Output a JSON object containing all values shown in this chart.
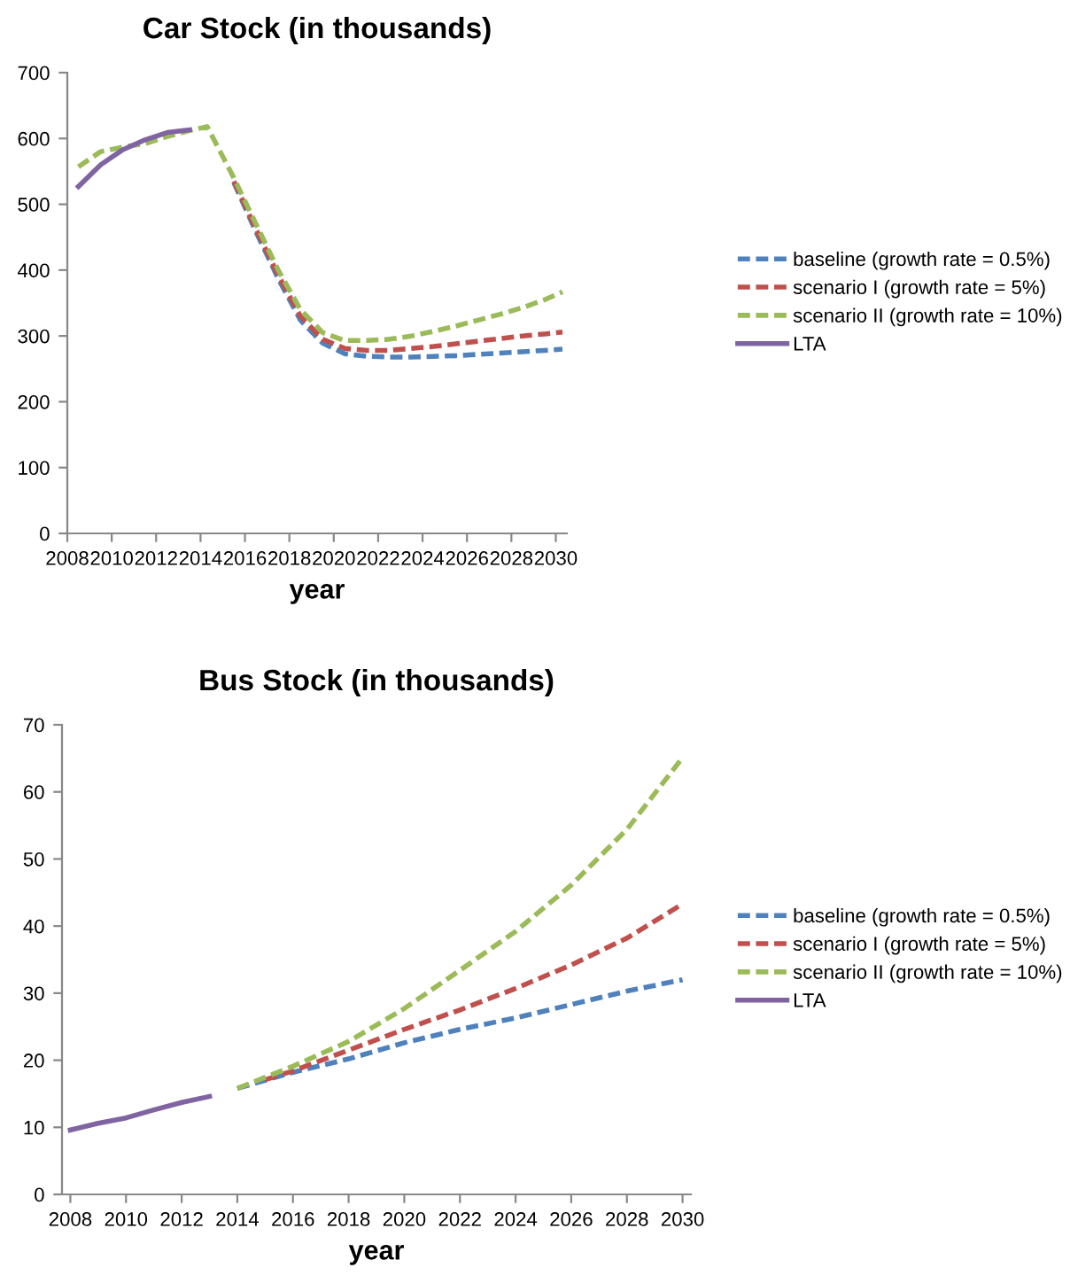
{
  "chart_data": [
    {
      "type": "line",
      "title": "Car Stock (in thousands)",
      "xlabel": "year",
      "xlim": [
        2008,
        2030.5
      ],
      "xticks": [
        2008,
        2010,
        2012,
        2014,
        2016,
        2018,
        2020,
        2022,
        2024,
        2026,
        2028,
        2030
      ],
      "ylim": [
        0,
        700
      ],
      "yticks": [
        0,
        100,
        200,
        300,
        400,
        500,
        600,
        700
      ],
      "grid": false,
      "legend": "right",
      "marker": "none",
      "series": [
        {
          "name": "baseline (growth rate = 0.5%)",
          "color": "#4f81bd",
          "line_style": "dashed",
          "x": [
            2015.5,
            2016.5,
            2017.5,
            2018.5,
            2019.5,
            2020.5,
            2021.5,
            2022.5,
            2023.5,
            2024.5,
            2025.5,
            2026.5,
            2027.5,
            2028.5,
            2029.5,
            2030.3
          ],
          "values": [
            533,
            458,
            387,
            324,
            289,
            273,
            269,
            268,
            268,
            269,
            270,
            272,
            274,
            276,
            278,
            280
          ]
        },
        {
          "name": "scenario I (growth rate = 5%)",
          "color": "#c0504d",
          "line_style": "dashed",
          "x": [
            2015.5,
            2016.5,
            2017.5,
            2018.5,
            2019.5,
            2020.5,
            2021.5,
            2022.5,
            2023.5,
            2024.5,
            2025.5,
            2026.5,
            2027.5,
            2028.5,
            2029.5,
            2030.3
          ],
          "values": [
            535,
            462,
            392,
            330,
            295,
            281,
            278,
            278,
            281,
            284,
            288,
            292,
            296,
            300,
            303,
            306
          ]
        },
        {
          "name": "scenario II (growth rate = 10%)",
          "color": "#9bbb59",
          "line_style": "dashed",
          "x": [
            2008.5,
            2009.5,
            2010.5,
            2011.5,
            2012.5,
            2013.5,
            2014.3,
            2015.5,
            2016.5,
            2017.5,
            2018.5,
            2019.5,
            2020.5,
            2021.5,
            2022.5,
            2023.5,
            2024.5,
            2025.5,
            2026.5,
            2027.5,
            2028.5,
            2029.5,
            2030.3
          ],
          "values": [
            557,
            580,
            587,
            592,
            603,
            612,
            618,
            540,
            470,
            400,
            340,
            305,
            293,
            293,
            295,
            300,
            307,
            315,
            324,
            333,
            343,
            355,
            367
          ]
        },
        {
          "name": "LTA",
          "color": "#8064a2",
          "line_style": "solid",
          "x": [
            2008.5,
            2009.5,
            2010.5,
            2011.5,
            2012.5,
            2013.5
          ],
          "values": [
            527,
            560,
            583,
            598,
            609,
            613
          ]
        }
      ]
    },
    {
      "type": "line",
      "title": "Bus Stock (in thousands)",
      "xlabel": "year",
      "xlim": [
        2007.7,
        2030.3
      ],
      "xticks": [
        2008,
        2010,
        2012,
        2014,
        2016,
        2018,
        2020,
        2022,
        2024,
        2026,
        2028,
        2030
      ],
      "ylim": [
        0,
        70
      ],
      "yticks": [
        0,
        10,
        20,
        30,
        40,
        50,
        60,
        70
      ],
      "grid": false,
      "legend": "right",
      "marker": "none",
      "series": [
        {
          "name": "baseline (growth rate = 0.5%)",
          "color": "#4f81bd",
          "line_style": "dashed",
          "x": [
            2014,
            2016,
            2018,
            2020,
            2022,
            2024,
            2026,
            2028,
            2030
          ],
          "values": [
            15.8,
            18.2,
            20.2,
            22.6,
            24.6,
            26.3,
            28.3,
            30.3,
            32
          ]
        },
        {
          "name": "scenario I (growth rate = 5%)",
          "color": "#c0504d",
          "line_style": "dashed",
          "x": [
            2015,
            2016,
            2018,
            2020,
            2022,
            2024,
            2026,
            2028,
            2030
          ],
          "values": [
            17.1,
            18.4,
            21.5,
            24.6,
            27.5,
            30.7,
            34.2,
            38.2,
            43.3
          ]
        },
        {
          "name": "scenario II (growth rate = 10%)",
          "color": "#9bbb59",
          "line_style": "dashed",
          "x": [
            2014,
            2016,
            2018,
            2020,
            2022,
            2024,
            2026,
            2028,
            2030
          ],
          "values": [
            15.8,
            19.1,
            22.8,
            27.7,
            33.4,
            39.2,
            46.1,
            54.4,
            65.1
          ]
        },
        {
          "name": "LTA",
          "color": "#8064a2",
          "line_style": "solid",
          "x": [
            2008,
            2009,
            2010,
            2011,
            2012,
            2013
          ],
          "values": [
            9.6,
            10.6,
            11.4,
            12.6,
            13.7,
            14.6
          ]
        }
      ]
    }
  ]
}
